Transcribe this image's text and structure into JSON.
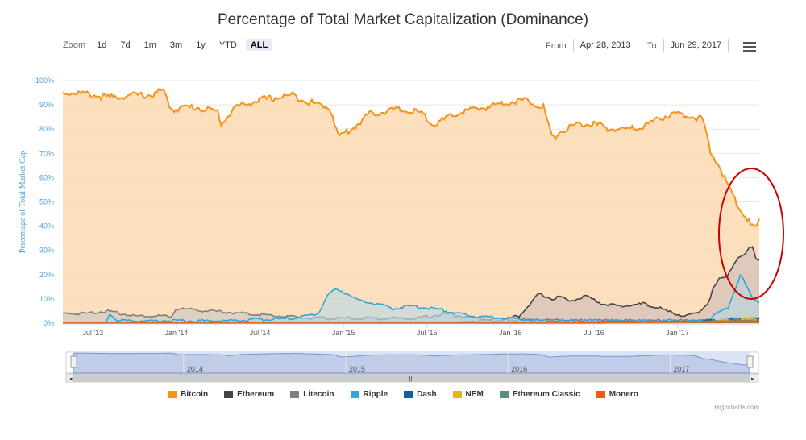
{
  "title": "Percentage of Total Market Capitalization (Dominance)",
  "zoom": {
    "label": "Zoom",
    "buttons": [
      "1d",
      "7d",
      "1m",
      "3m",
      "1y",
      "YTD",
      "ALL"
    ],
    "active": "ALL"
  },
  "range": {
    "from_label": "From",
    "from_value": "Apr 28, 2013",
    "to_label": "To",
    "to_value": "Jun 29, 2017"
  },
  "menu_icon": "hamburger-menu-icon",
  "credit": "Highcharts.com",
  "annotation": {
    "shape": "ellipse",
    "color": "#cc0000",
    "around": "Bitcoin drop 2017"
  },
  "chart_data": {
    "type": "area",
    "title": "Percentage of Total Market Capitalization (Dominance)",
    "ylabel": "Percentage of Total Market Cap",
    "ylim": [
      0,
      100
    ],
    "yticks": [
      "0%",
      "10%",
      "20%",
      "30%",
      "40%",
      "50%",
      "60%",
      "70%",
      "80%",
      "90%",
      "100%"
    ],
    "xticks": [
      {
        "label": "Jul '13",
        "t": 2013.5
      },
      {
        "label": "Jan '14",
        "t": 2014.0
      },
      {
        "label": "Jul '14",
        "t": 2014.5
      },
      {
        "label": "Jan '15",
        "t": 2015.0
      },
      {
        "label": "Jul '15",
        "t": 2015.5
      },
      {
        "label": "Jan '16",
        "t": 2016.0
      },
      {
        "label": "Jul '16",
        "t": 2016.5
      },
      {
        "label": "Jan '17",
        "t": 2017.0
      }
    ],
    "xlim": [
      2013.32,
      2017.49
    ],
    "navigator_labels": [
      {
        "label": "2014",
        "t": 2014.0
      },
      {
        "label": "2015",
        "t": 2015.0
      },
      {
        "label": "2016",
        "t": 2016.0
      },
      {
        "label": "2017",
        "t": 2017.0
      }
    ],
    "grid": true,
    "legend_position": "bottom",
    "series": [
      {
        "name": "Bitcoin",
        "color": "#f7931a",
        "fill": "#fbd5a8",
        "x": [
          2013.32,
          2013.4,
          2013.5,
          2013.6,
          2013.75,
          2013.85,
          2013.92,
          2013.97,
          2014.05,
          2014.12,
          2014.25,
          2014.27,
          2014.35,
          2014.5,
          2014.7,
          2014.8,
          2014.92,
          2014.97,
          2015.05,
          2015.15,
          2015.3,
          2015.45,
          2015.55,
          2015.7,
          2015.85,
          2015.97,
          2016.1,
          2016.2,
          2016.25,
          2016.3,
          2016.4,
          2016.5,
          2016.6,
          2016.75,
          2016.85,
          2016.95,
          2017.05,
          2017.15,
          2017.2,
          2017.25,
          2017.3,
          2017.35,
          2017.4,
          2017.44,
          2017.47,
          2017.49
        ],
        "values": [
          95,
          95,
          94,
          93,
          94,
          94,
          96,
          88,
          89,
          89,
          87,
          82,
          89,
          92,
          94,
          91,
          89,
          77,
          80,
          86,
          88,
          87,
          82,
          87,
          89,
          91,
          92,
          89,
          76,
          79,
          82,
          82,
          80,
          80,
          83,
          86,
          86,
          84,
          70,
          65,
          57,
          50,
          45,
          40,
          39,
          42
        ]
      },
      {
        "name": "Ethereum",
        "color": "#434348",
        "fill": "#c6b6b6",
        "x": [
          2013.32,
          2015.58,
          2015.7,
          2015.85,
          2015.97,
          2016.05,
          2016.12,
          2016.17,
          2016.25,
          2016.3,
          2016.35,
          2016.4,
          2016.45,
          2016.55,
          2016.65,
          2016.8,
          2016.9,
          2016.98,
          2017.05,
          2017.12,
          2017.18,
          2017.22,
          2017.25,
          2017.3,
          2017.35,
          2017.4,
          2017.43,
          2017.45,
          2017.47,
          2017.49
        ],
        "values": [
          0,
          0,
          0.5,
          1,
          1.5,
          3,
          8,
          12,
          10,
          11,
          9,
          10,
          11,
          8,
          7,
          8,
          6,
          4,
          3,
          4,
          8,
          15,
          18,
          20,
          26,
          28,
          31,
          32,
          27,
          26
        ]
      },
      {
        "name": "Litecoin",
        "color": "#808080",
        "fill": "#c5c5c5",
        "x": [
          2013.32,
          2013.45,
          2013.58,
          2013.75,
          2013.9,
          2013.97,
          2014.0,
          2014.2,
          2014.4,
          2014.6,
          2014.8,
          2014.95,
          2015.1,
          2015.3,
          2015.45,
          2015.6,
          2015.8,
          2016.0,
          2016.5,
          2017.0,
          2017.2,
          2017.35,
          2017.45,
          2017.49
        ],
        "values": [
          4,
          4,
          5,
          3,
          3,
          2.5,
          6,
          5,
          4,
          3,
          2,
          2,
          2,
          2,
          2,
          4,
          2,
          1.5,
          1,
          1,
          1,
          2,
          2,
          2
        ]
      },
      {
        "name": "Ripple",
        "color": "#2fa6d6",
        "fill": "#aed7e7",
        "x": [
          2013.32,
          2013.5,
          2013.58,
          2013.6,
          2013.65,
          2013.75,
          2013.85,
          2014.0,
          2014.3,
          2014.5,
          2014.7,
          2014.85,
          2014.9,
          2014.95,
          2015.0,
          2015.1,
          2015.2,
          2015.3,
          2015.4,
          2015.55,
          2015.75,
          2016.0,
          2016.2,
          2016.5,
          2016.8,
          2017.0,
          2017.1,
          2017.18,
          2017.24,
          2017.3,
          2017.35,
          2017.38,
          2017.42,
          2017.45,
          2017.49
        ],
        "values": [
          0,
          0,
          0.5,
          4,
          1,
          1,
          1,
          1,
          1,
          1.5,
          2,
          4,
          11,
          14,
          13,
          9,
          8,
          6,
          7,
          6,
          3,
          2,
          1,
          1,
          1,
          1,
          1,
          1.5,
          4,
          6,
          15,
          20,
          14,
          10,
          9
        ]
      },
      {
        "name": "Dash",
        "color": "#0d60a8",
        "fill": "#0d60a8",
        "x": [
          2013.32,
          2015.0,
          2016.0,
          2016.8,
          2017.0,
          2017.2,
          2017.35,
          2017.49
        ],
        "values": [
          0,
          0,
          0.3,
          0.5,
          0.6,
          1,
          1.5,
          1.5
        ]
      },
      {
        "name": "NEM",
        "color": "#e6b710",
        "fill": "#e6b710",
        "x": [
          2013.32,
          2016.5,
          2017.0,
          2017.2,
          2017.35,
          2017.42,
          2017.49
        ],
        "values": [
          0,
          0,
          0.2,
          0.5,
          1.5,
          2,
          1.5
        ]
      },
      {
        "name": "Ethereum Classic",
        "color": "#5b8e74",
        "fill": "#5b8e74",
        "x": [
          2013.32,
          2016.55,
          2016.6,
          2016.8,
          2017.0,
          2017.2,
          2017.35,
          2017.49
        ],
        "values": [
          0,
          0,
          0.8,
          0.6,
          0.6,
          0.8,
          1,
          1
        ]
      },
      {
        "name": "Monero",
        "color": "#ef5a17",
        "fill": "#ef5a17",
        "x": [
          2013.32,
          2016.3,
          2016.7,
          2017.0,
          2017.3,
          2017.49
        ],
        "values": [
          0,
          0,
          0.4,
          0.7,
          0.8,
          0.8
        ]
      }
    ]
  }
}
